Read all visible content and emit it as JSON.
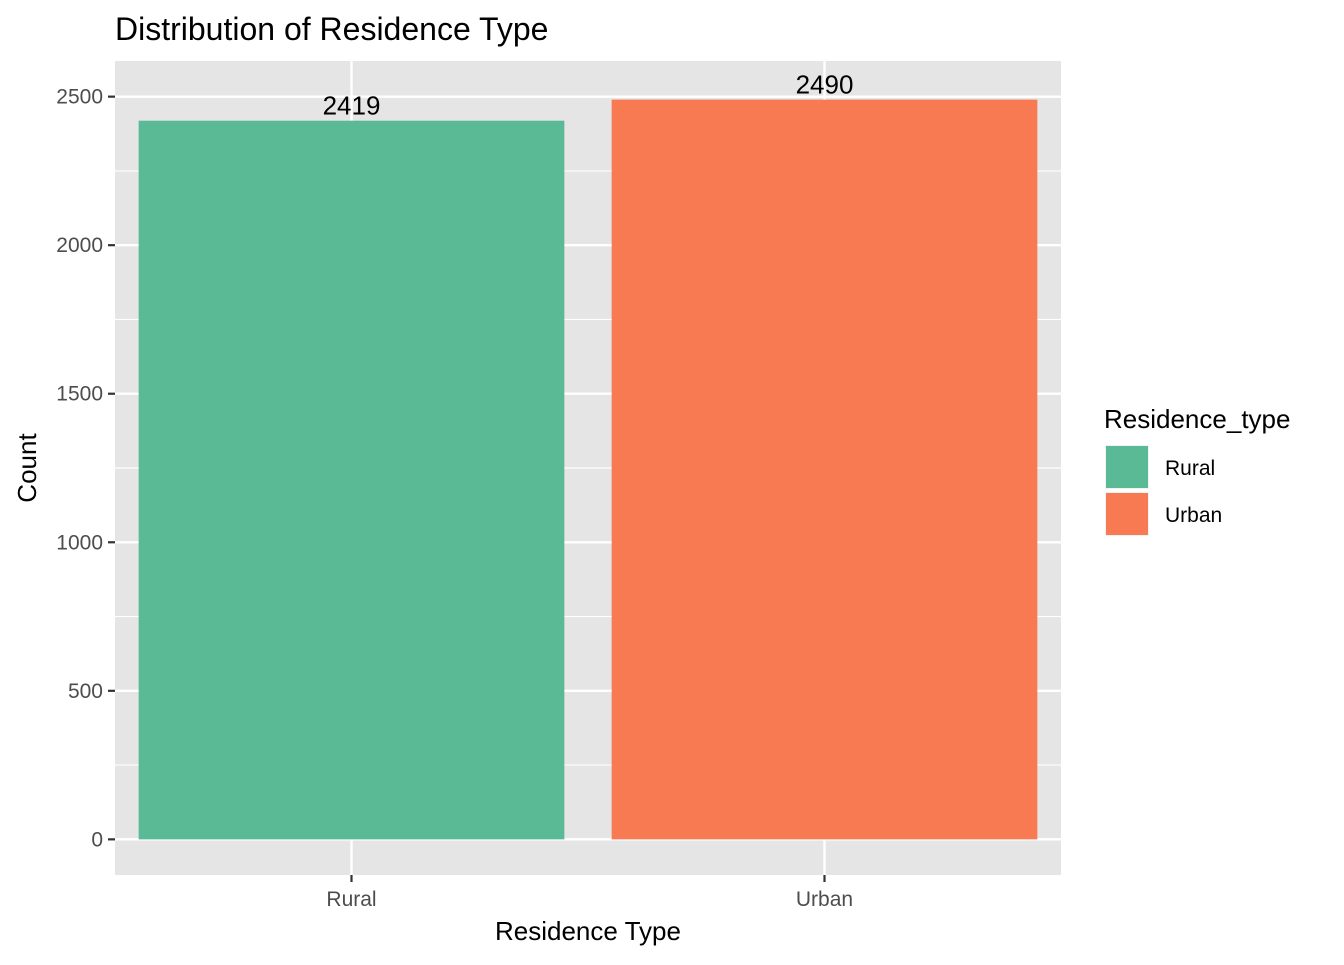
{
  "chart_data": {
    "type": "bar",
    "title": "Distribution of Residence Type",
    "xlabel": "Residence Type",
    "ylabel": "Count",
    "categories": [
      "Rural",
      "Urban"
    ],
    "values": [
      2419,
      2490
    ],
    "data_labels": [
      "2419",
      "2490"
    ],
    "ylim": [
      -120,
      2620
    ],
    "yticks": [
      0,
      500,
      1000,
      1500,
      2000,
      2500
    ],
    "ytick_labels": [
      "0",
      "500",
      "1000",
      "1500",
      "2000",
      "2500"
    ],
    "grid": true,
    "colors": [
      "#59BA95",
      "#F87A52"
    ],
    "legend": {
      "title": "Residence_type",
      "placement": "right",
      "entries": [
        "Rural",
        "Urban"
      ]
    },
    "panel_background": "#E5E5E5",
    "grid_color": "#FFFFFF"
  }
}
